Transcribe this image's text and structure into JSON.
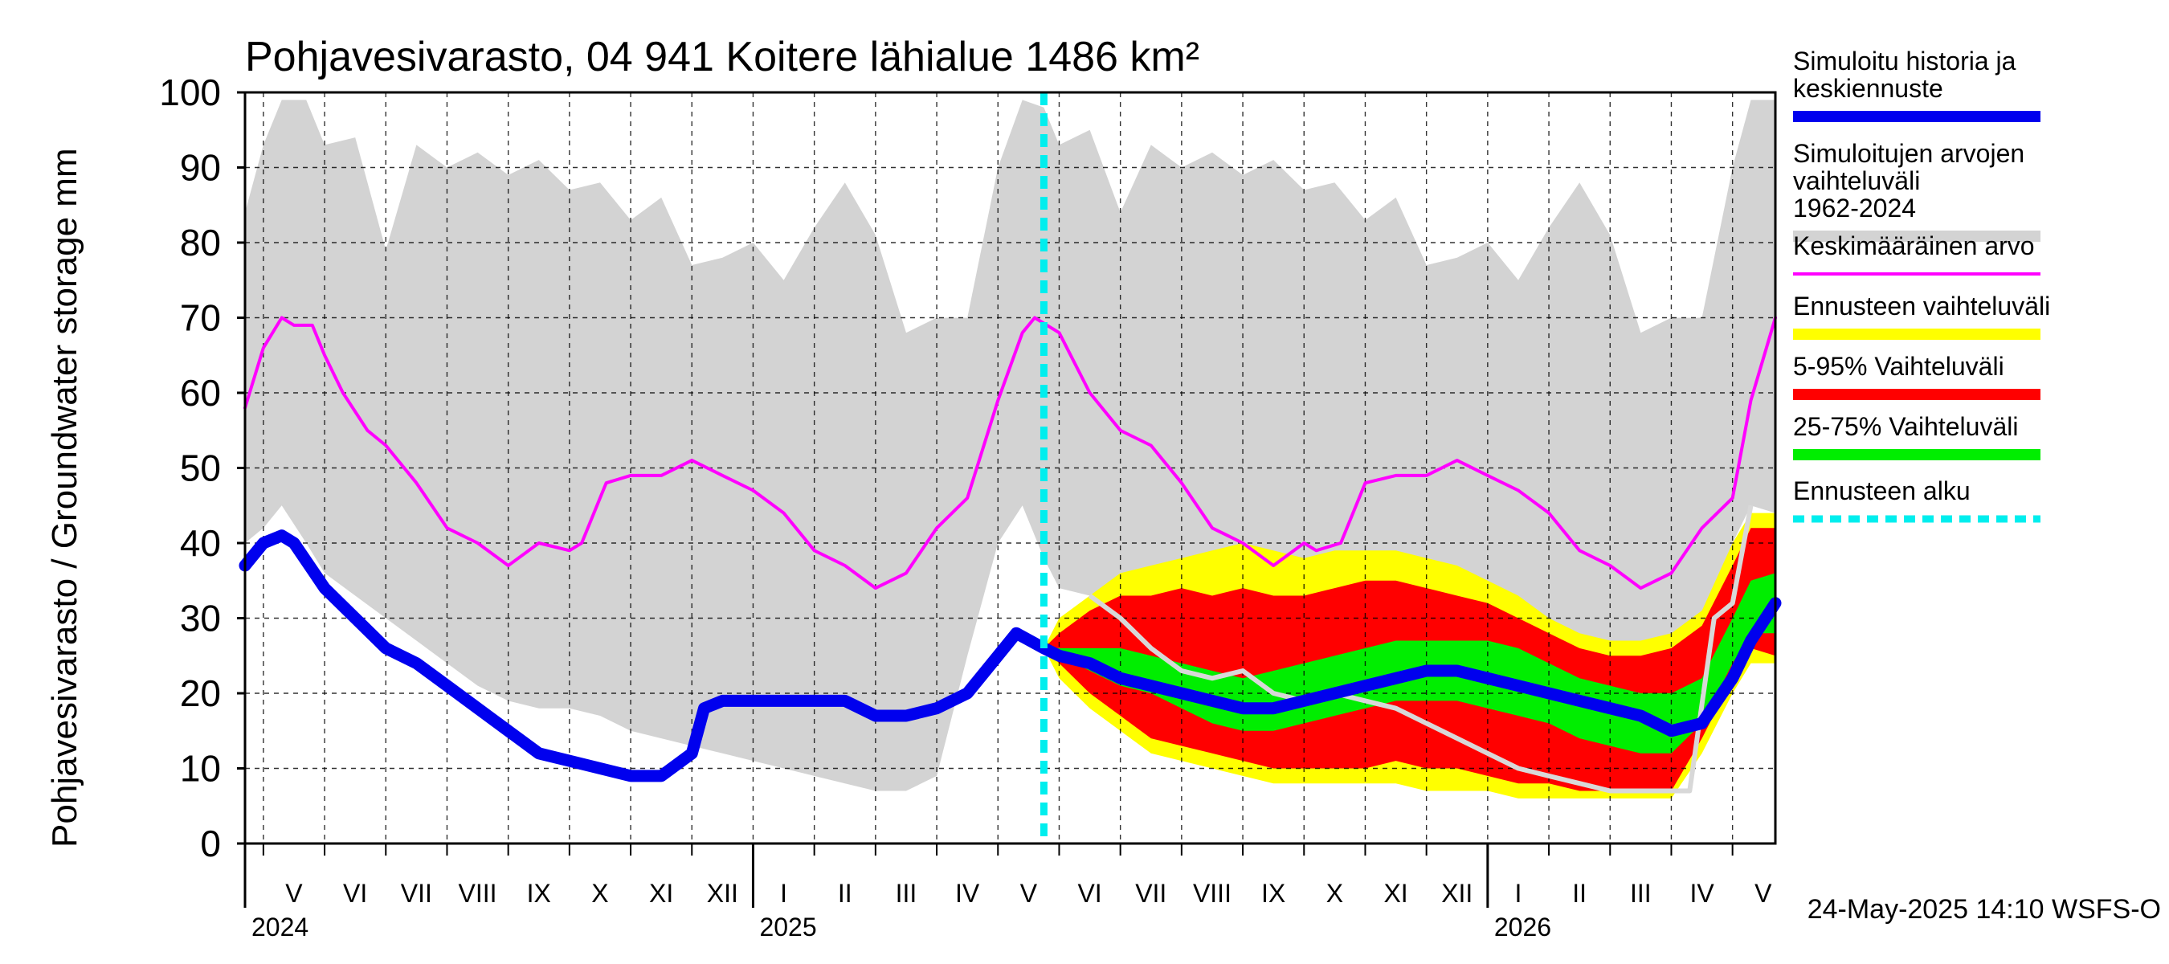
{
  "chart_data": {
    "type": "area",
    "title": "Pohjavesivarasto, 04 941 Koitere lähialue 1486 km²",
    "ylabel": "Pohjavesivarasto / Groundwater storage   mm",
    "xlabel": "",
    "ylim": [
      0,
      100
    ],
    "yticks": [
      0,
      10,
      20,
      30,
      40,
      50,
      60,
      70,
      80,
      90,
      100
    ],
    "x_unit": "months since 2024-05-01",
    "xlim": [
      -0.3,
      24.7
    ],
    "month_labels": [
      {
        "label": "V",
        "x": 0.5
      },
      {
        "label": "VI",
        "x": 1.5
      },
      {
        "label": "VII",
        "x": 2.5
      },
      {
        "label": "VIII",
        "x": 3.5
      },
      {
        "label": "IX",
        "x": 4.5
      },
      {
        "label": "X",
        "x": 5.5
      },
      {
        "label": "XI",
        "x": 6.5
      },
      {
        "label": "XII",
        "x": 7.5
      },
      {
        "label": "I",
        "x": 8.5
      },
      {
        "label": "II",
        "x": 9.5
      },
      {
        "label": "III",
        "x": 10.5
      },
      {
        "label": "IV",
        "x": 11.5
      },
      {
        "label": "V",
        "x": 12.5
      },
      {
        "label": "VI",
        "x": 13.5
      },
      {
        "label": "VII",
        "x": 14.5
      },
      {
        "label": "VIII",
        "x": 15.5
      },
      {
        "label": "IX",
        "x": 16.5
      },
      {
        "label": "X",
        "x": 17.5
      },
      {
        "label": "XI",
        "x": 18.5
      },
      {
        "label": "XII",
        "x": 19.5
      },
      {
        "label": "I",
        "x": 20.5
      },
      {
        "label": "II",
        "x": 21.5
      },
      {
        "label": "III",
        "x": 22.5
      },
      {
        "label": "IV",
        "x": 23.5
      },
      {
        "label": "V",
        "x": 24.5
      }
    ],
    "year_labels": [
      {
        "label": "2024",
        "x": -0.3
      },
      {
        "label": "2025",
        "x": 8.0
      },
      {
        "label": "2026",
        "x": 20.0
      }
    ],
    "year_boundaries": [
      8,
      20
    ],
    "forecast_start": 12.75,
    "series": [
      {
        "name": "Simuloitujen arvojen vaihteluväli 1962-2024",
        "kind": "band",
        "color": "#d3d3d3",
        "x": [
          -0.3,
          0.0,
          0.3,
          0.7,
          1.0,
          1.5,
          2.0,
          2.5,
          3.0,
          3.5,
          4.0,
          4.5,
          5.0,
          5.5,
          6.0,
          6.5,
          7.0,
          7.5,
          8.0,
          8.5,
          9.0,
          9.5,
          10.0,
          10.5,
          11.0,
          11.5,
          12.0,
          12.4,
          12.75,
          13.0,
          13.5,
          14.0,
          14.5,
          15.0,
          15.5,
          16.0,
          16.5,
          17.0,
          17.5,
          18.0,
          18.5,
          19.0,
          19.5,
          20.0,
          20.5,
          21.0,
          21.5,
          22.0,
          22.5,
          23.0,
          23.5,
          24.0,
          24.3,
          24.7
        ],
        "upper": [
          84,
          93,
          99,
          99,
          93,
          94,
          79,
          93,
          90,
          92,
          89,
          91,
          87,
          88,
          83,
          86,
          77,
          78,
          80,
          75,
          82,
          88,
          81,
          68,
          70,
          70,
          90,
          99,
          98,
          93,
          95,
          84,
          93,
          90,
          92,
          89,
          91,
          87,
          88,
          83,
          86,
          77,
          78,
          80,
          75,
          82,
          88,
          81,
          68,
          70,
          70,
          90,
          99,
          99
        ],
        "lower": [
          40,
          42,
          45,
          40,
          36,
          33,
          30,
          27,
          24,
          21,
          19,
          18,
          18,
          17,
          15,
          14,
          13,
          12,
          11,
          10,
          9,
          8,
          7,
          7,
          9,
          25,
          40,
          45,
          38,
          34,
          33,
          30,
          27,
          24,
          21,
          19,
          18,
          18,
          17,
          15,
          14,
          13,
          12,
          11,
          10,
          9,
          8,
          7,
          7,
          9,
          25,
          40,
          45,
          44
        ]
      },
      {
        "name": "Ennusteen vaihteluväli",
        "kind": "band",
        "color": "#ffff00",
        "x": [
          12.75,
          13.0,
          13.5,
          14.0,
          14.5,
          15.0,
          15.5,
          16.0,
          16.5,
          17.0,
          17.5,
          18.0,
          18.5,
          19.0,
          19.5,
          20.0,
          20.5,
          21.0,
          21.5,
          22.0,
          22.5,
          23.0,
          23.5,
          24.0,
          24.3,
          24.7
        ],
        "upper": [
          26,
          30,
          33,
          36,
          37,
          38,
          39,
          40,
          39,
          38,
          39,
          39,
          39,
          38,
          37,
          35,
          33,
          30,
          28,
          27,
          27,
          28,
          31,
          40,
          44,
          44
        ],
        "lower": [
          26,
          22,
          18,
          15,
          12,
          11,
          10,
          9,
          8,
          8,
          8,
          8,
          8,
          7,
          7,
          7,
          6,
          6,
          6,
          6,
          6,
          6,
          12,
          20,
          24,
          24
        ]
      },
      {
        "name": "5-95% Vaihteluväli",
        "kind": "band",
        "color": "#ff0000",
        "x": [
          12.75,
          13.0,
          13.5,
          14.0,
          14.5,
          15.0,
          15.5,
          16.0,
          16.5,
          17.0,
          17.5,
          18.0,
          18.5,
          19.0,
          19.5,
          20.0,
          20.5,
          21.0,
          21.5,
          22.0,
          22.5,
          23.0,
          23.5,
          24.0,
          24.3,
          24.7
        ],
        "upper": [
          26,
          28,
          31,
          33,
          33,
          34,
          33,
          34,
          33,
          33,
          34,
          35,
          35,
          34,
          33,
          32,
          30,
          28,
          26,
          25,
          25,
          26,
          29,
          37,
          42,
          42
        ],
        "lower": [
          26,
          24,
          20,
          17,
          14,
          13,
          12,
          11,
          10,
          10,
          10,
          10,
          11,
          10,
          10,
          9,
          8,
          8,
          7,
          7,
          7,
          7,
          14,
          22,
          26,
          25
        ]
      },
      {
        "name": "25-75% Vaihteluväli",
        "kind": "band",
        "color": "#00ee00",
        "x": [
          12.75,
          13.0,
          13.5,
          14.0,
          14.5,
          15.0,
          15.5,
          16.0,
          16.5,
          17.0,
          17.5,
          18.0,
          18.5,
          19.0,
          19.5,
          20.0,
          20.5,
          21.0,
          21.5,
          22.0,
          22.5,
          23.0,
          23.5,
          24.0,
          24.3,
          24.7
        ],
        "upper": [
          26,
          26,
          26,
          26,
          25,
          24,
          23,
          22,
          23,
          24,
          25,
          26,
          27,
          27,
          27,
          27,
          26,
          24,
          22,
          21,
          20,
          20,
          22,
          30,
          35,
          36
        ],
        "lower": [
          26,
          25,
          23,
          21,
          20,
          18,
          16,
          15,
          15,
          16,
          17,
          18,
          19,
          19,
          19,
          18,
          17,
          16,
          14,
          13,
          12,
          12,
          16,
          24,
          28,
          28
        ]
      },
      {
        "name": "Keskimääräinen arvo",
        "kind": "line",
        "color": "#ff00ff",
        "x": [
          -0.3,
          0.0,
          0.3,
          0.5,
          0.8,
          1.0,
          1.3,
          1.7,
          2.0,
          2.5,
          3.0,
          3.5,
          4.0,
          4.5,
          5.0,
          5.2,
          5.6,
          6.0,
          6.5,
          7.0,
          7.5,
          8.0,
          8.5,
          9.0,
          9.5,
          10.0,
          10.5,
          11.0,
          11.5,
          12.0,
          12.4,
          12.6,
          13.0,
          13.5,
          14.0,
          14.5,
          15.0,
          15.5,
          16.0,
          16.5,
          17.0,
          17.2,
          17.6,
          18.0,
          18.5,
          19.0,
          19.5,
          20.0,
          20.5,
          21.0,
          21.5,
          22.0,
          22.5,
          23.0,
          23.5,
          24.0,
          24.3,
          24.7
        ],
        "values": [
          58,
          66,
          70,
          69,
          69,
          65,
          60,
          55,
          53,
          48,
          42,
          40,
          37,
          40,
          39,
          40,
          48,
          49,
          49,
          51,
          49,
          47,
          44,
          39,
          37,
          34,
          36,
          42,
          46,
          59,
          68,
          70,
          68,
          60,
          55,
          53,
          48,
          42,
          40,
          37,
          40,
          39,
          40,
          48,
          49,
          49,
          51,
          49,
          47,
          44,
          39,
          37,
          34,
          36,
          42,
          46,
          59,
          70
        ]
      },
      {
        "name": "Simuloitu historia ja keskiennuste",
        "kind": "line",
        "color": "#0000ee",
        "x": [
          -0.3,
          0.0,
          0.3,
          0.5,
          1.0,
          1.5,
          2.0,
          2.5,
          3.0,
          3.5,
          4.0,
          4.5,
          5.0,
          5.5,
          6.0,
          6.5,
          7.0,
          7.2,
          7.5,
          8.0,
          8.5,
          9.0,
          9.5,
          10.0,
          10.5,
          11.0,
          11.5,
          12.0,
          12.3,
          12.75,
          13.0,
          13.5,
          14.0,
          14.5,
          15.0,
          15.5,
          16.0,
          16.5,
          17.0,
          17.5,
          18.0,
          18.5,
          19.0,
          19.5,
          20.0,
          20.5,
          21.0,
          21.5,
          22.0,
          22.5,
          23.0,
          23.5,
          24.0,
          24.3,
          24.7
        ],
        "values": [
          37,
          40,
          41,
          40,
          34,
          30,
          26,
          24,
          21,
          18,
          15,
          12,
          11,
          10,
          9,
          9,
          12,
          18,
          19,
          19,
          19,
          19,
          19,
          17,
          17,
          18,
          20,
          25,
          28,
          26,
          25,
          24,
          22,
          21,
          20,
          19,
          18,
          18,
          19,
          20,
          21,
          22,
          23,
          23,
          22,
          21,
          20,
          19,
          18,
          17,
          15,
          16,
          22,
          27,
          32
        ]
      },
      {
        "name": "Ennusteen alku",
        "kind": "vline",
        "color": "#00eeee",
        "x": 12.75
      }
    ],
    "extra_trace": {
      "color": "#d8d8d8",
      "x": [
        13.5,
        14.0,
        14.5,
        15.0,
        15.5,
        16.0,
        16.5,
        17.0,
        17.5,
        18.0,
        18.5,
        19.0,
        19.5,
        20.0,
        20.5,
        21.0,
        21.5,
        22.0,
        22.5,
        23.0,
        23.3,
        23.7,
        24.0,
        24.3
      ],
      "values": [
        33,
        30,
        26,
        23,
        22,
        23,
        20,
        19,
        20,
        19,
        18,
        16,
        14,
        12,
        10,
        9,
        8,
        7,
        7,
        7,
        7,
        30,
        32,
        45
      ]
    }
  },
  "legend": {
    "items": [
      {
        "label": "Simuloitu historia ja keskiennuste",
        "color": "#0000ee",
        "style": "solid"
      },
      {
        "label": "Simuloitujen arvojen vaihteluväli 1962-2024",
        "color": "#d3d3d3",
        "style": "solid"
      },
      {
        "label": "Keskimääräinen arvo",
        "color": "#ff00ff",
        "style": "thin"
      },
      {
        "label": "Ennusteen vaihteluväli",
        "color": "#ffff00",
        "style": "solid"
      },
      {
        "label": "5-95% Vaihteluväli",
        "color": "#ff0000",
        "style": "solid"
      },
      {
        "label": "25-75% Vaihteluväli",
        "color": "#00ee00",
        "style": "solid"
      },
      {
        "label": "Ennusteen alku",
        "color": "#00eeee",
        "style": "dashed"
      }
    ]
  },
  "footer": {
    "timestamp": "24-May-2025 14:10 WSFS-O"
  }
}
